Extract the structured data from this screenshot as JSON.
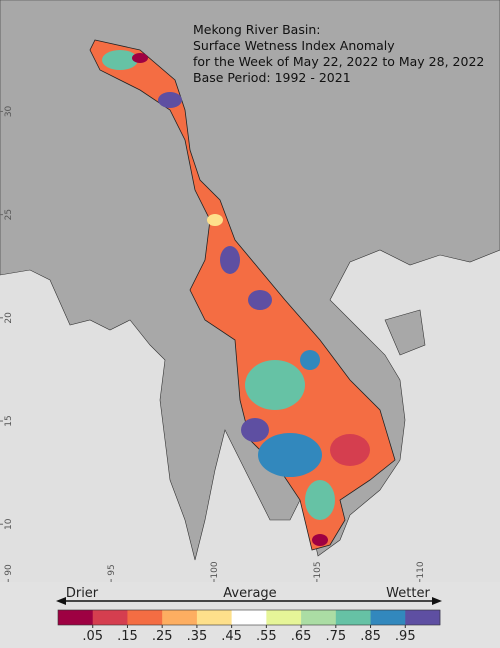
{
  "chart_data": {
    "type": "map",
    "title": [
      "Mekong River Basin:",
      "Surface Wetness Index Anomaly",
      "for the Week of May 22, 2022 to May 28, 2022",
      "Base Period: 1992 - 2021"
    ],
    "xlim": [
      89.6,
      113.9
    ],
    "ylim": [
      7.2,
      35.4
    ],
    "xticks": [
      90,
      95,
      100,
      105,
      110
    ],
    "yticks": [
      30,
      25,
      20,
      15,
      10
    ],
    "colorbar": {
      "left_label": "Drier",
      "center_label": "Average",
      "right_label": "Wetter",
      "colors": [
        "#9e0142",
        "#d53e4f",
        "#f46d43",
        "#fdae61",
        "#fee08b",
        "#ffffff",
        "#e6f598",
        "#abdda4",
        "#66c2a5",
        "#3288bd",
        "#5e4fa2"
      ],
      "ticks": [
        {
          "value": 0.05,
          "label": ".05"
        },
        {
          "value": 0.15,
          "label": ".15"
        },
        {
          "value": 0.25,
          "label": ".25"
        },
        {
          "value": 0.35,
          "label": ".35"
        },
        {
          "value": 0.45,
          "label": ".45"
        },
        {
          "value": 0.55,
          "label": ".55"
        },
        {
          "value": 0.65,
          "label": ".65"
        },
        {
          "value": 0.75,
          "label": ".75"
        },
        {
          "value": 0.85,
          "label": ".85"
        },
        {
          "value": 0.95,
          "label": ".95"
        }
      ]
    }
  }
}
